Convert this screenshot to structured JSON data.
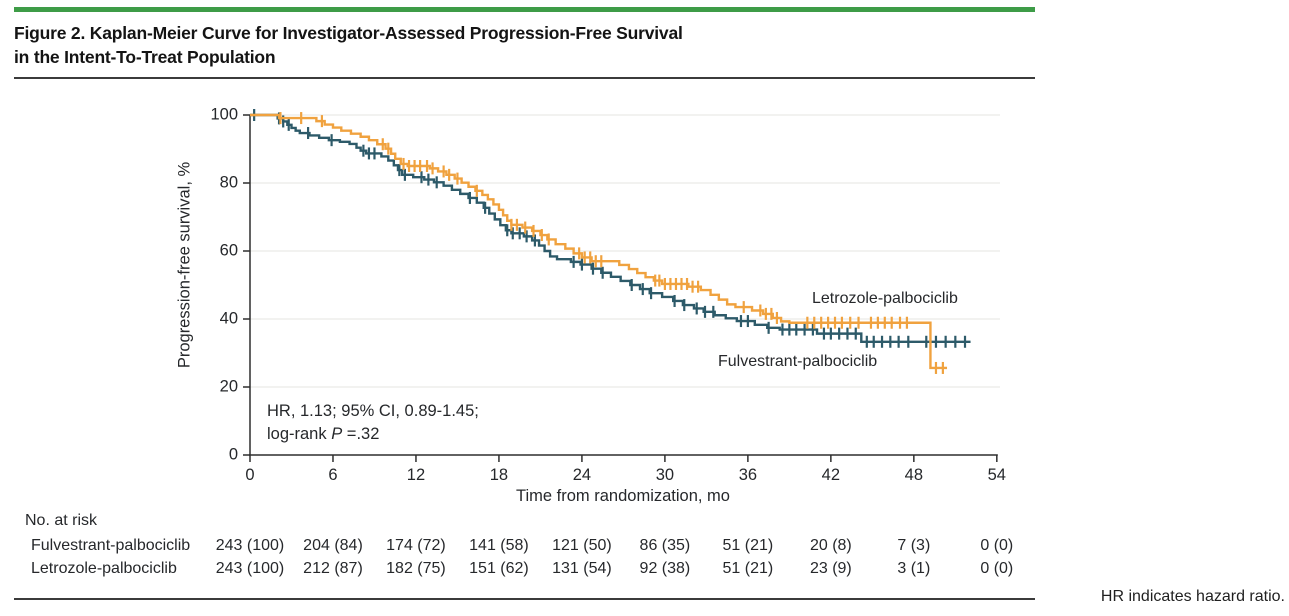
{
  "figure": {
    "accent_bar_color": "#3E9C47",
    "title_line1": "Figure 2. Kaplan-Meier Curve for Investigator-Assessed Progression-Free Survival",
    "title_line2": "in the Intent-To-Treat Population",
    "footnote": "HR indicates hazard ratio."
  },
  "chart_data": {
    "type": "line",
    "subtype": "kaplan-meier-step",
    "title": "",
    "xlabel": "Time from randomization, mo",
    "ylabel": "Progression-free survival, %",
    "xlim": [
      0,
      54
    ],
    "ylim": [
      0,
      100
    ],
    "x_ticks": [
      0,
      6,
      12,
      18,
      24,
      30,
      36,
      42,
      48,
      54
    ],
    "y_ticks": [
      0,
      20,
      40,
      60,
      80,
      100
    ],
    "grid": "horizontal-light",
    "gridline_color": "#E6E5E2",
    "axis_color": "#2e2e2e",
    "annotation": {
      "line1": "HR, 1.13; 95% CI, 0.89-1.45;",
      "line2_prefix": "log-rank ",
      "line2_italic": "P",
      "line2_suffix": " =.32"
    },
    "series": [
      {
        "name": "Fulvestrant-palbociclib",
        "color": "#2D5A69",
        "end_month": 52.1,
        "steps": [
          [
            0,
            100
          ],
          [
            2.0,
            99.0
          ],
          [
            2.4,
            98.1
          ],
          [
            2.7,
            97.1
          ],
          [
            3.0,
            96.2
          ],
          [
            3.3,
            95.4
          ],
          [
            3.6,
            94.7
          ],
          [
            4.3,
            94.0
          ],
          [
            5.0,
            93.3
          ],
          [
            5.7,
            92.6
          ],
          [
            6.5,
            92.1
          ],
          [
            7.2,
            91.5
          ],
          [
            7.7,
            90.4
          ],
          [
            8.0,
            89.5
          ],
          [
            8.4,
            88.7
          ],
          [
            9.5,
            87.8
          ],
          [
            10.0,
            86.6
          ],
          [
            10.4,
            85.2
          ],
          [
            10.7,
            83.8
          ],
          [
            11.0,
            82.4
          ],
          [
            11.8,
            81.7
          ],
          [
            12.6,
            81.0
          ],
          [
            13.3,
            80.2
          ],
          [
            14.0,
            79.2
          ],
          [
            14.6,
            78.0
          ],
          [
            15.2,
            76.8
          ],
          [
            15.8,
            75.6
          ],
          [
            16.4,
            74.2
          ],
          [
            16.9,
            72.7
          ],
          [
            17.3,
            71.0
          ],
          [
            17.7,
            69.3
          ],
          [
            18.1,
            67.6
          ],
          [
            18.5,
            66.1
          ],
          [
            18.9,
            65.2
          ],
          [
            19.8,
            64.3
          ],
          [
            20.4,
            63.1
          ],
          [
            20.9,
            61.6
          ],
          [
            21.3,
            60.0
          ],
          [
            21.7,
            58.4
          ],
          [
            22.2,
            57.6
          ],
          [
            23.2,
            56.8
          ],
          [
            23.9,
            56.0
          ],
          [
            24.7,
            54.8
          ],
          [
            25.4,
            53.6
          ],
          [
            26.1,
            52.4
          ],
          [
            26.8,
            51.2
          ],
          [
            27.5,
            50.0
          ],
          [
            28.2,
            48.8
          ],
          [
            28.9,
            47.6
          ],
          [
            29.8,
            46.5
          ],
          [
            30.6,
            45.3
          ],
          [
            31.3,
            44.1
          ],
          [
            32.1,
            43.1
          ],
          [
            32.8,
            42.1
          ],
          [
            33.6,
            41.1
          ],
          [
            34.4,
            40.2
          ],
          [
            35.2,
            39.4
          ],
          [
            36.5,
            38.3
          ],
          [
            37.4,
            37.4
          ],
          [
            38.3,
            36.9
          ],
          [
            41.0,
            35.7
          ],
          [
            44.2,
            33.3
          ]
        ],
        "censor_months": [
          0.3,
          2.1,
          2.4,
          2.8,
          4.2,
          5.9,
          8.2,
          8.6,
          9.0,
          10.8,
          11.2,
          12.4,
          12.9,
          13.5,
          15.9,
          17.0,
          18.6,
          19.0,
          19.5,
          20.0,
          20.6,
          23.4,
          24.0,
          24.8,
          25.5,
          27.6,
          28.4,
          29.0,
          30.7,
          31.4,
          32.3,
          32.9,
          33.5,
          35.5,
          36.0,
          37.5,
          38.5,
          39.0,
          39.5,
          40.1,
          40.7,
          41.5,
          42.0,
          42.6,
          43.2,
          43.8,
          44.6,
          45.1,
          45.7,
          46.3,
          46.9,
          47.6,
          48.9,
          49.6,
          50.3,
          51.0,
          51.7
        ]
      },
      {
        "name": "Letrozole-palbociclib",
        "color": "#F0A23F",
        "end_month": 50.4,
        "steps": [
          [
            0,
            100
          ],
          [
            2.1,
            99.1
          ],
          [
            4.8,
            98.2
          ],
          [
            5.4,
            97.2
          ],
          [
            6.0,
            96.3
          ],
          [
            6.6,
            95.4
          ],
          [
            7.3,
            94.5
          ],
          [
            8.0,
            93.6
          ],
          [
            8.6,
            92.6
          ],
          [
            9.2,
            91.4
          ],
          [
            9.8,
            90.1
          ],
          [
            10.2,
            88.6
          ],
          [
            10.5,
            87.1
          ],
          [
            10.9,
            85.6
          ],
          [
            11.4,
            85.0
          ],
          [
            13.0,
            84.3
          ],
          [
            13.6,
            83.4
          ],
          [
            14.2,
            82.4
          ],
          [
            14.8,
            81.3
          ],
          [
            15.3,
            80.1
          ],
          [
            15.8,
            78.9
          ],
          [
            16.3,
            77.7
          ],
          [
            16.8,
            76.5
          ],
          [
            17.2,
            75.2
          ],
          [
            17.6,
            73.7
          ],
          [
            18.0,
            72.1
          ],
          [
            18.3,
            70.5
          ],
          [
            18.6,
            68.9
          ],
          [
            18.9,
            67.7
          ],
          [
            19.7,
            66.9
          ],
          [
            20.4,
            65.9
          ],
          [
            21.0,
            64.7
          ],
          [
            21.5,
            63.4
          ],
          [
            22.1,
            62.0
          ],
          [
            22.8,
            60.7
          ],
          [
            23.4,
            59.3
          ],
          [
            24.0,
            58.1
          ],
          [
            24.7,
            57.0
          ],
          [
            26.7,
            55.9
          ],
          [
            27.4,
            54.7
          ],
          [
            28.0,
            53.5
          ],
          [
            28.6,
            52.3
          ],
          [
            29.2,
            51.3
          ],
          [
            29.8,
            50.3
          ],
          [
            31.7,
            49.5
          ],
          [
            32.6,
            48.5
          ],
          [
            33.3,
            47.1
          ],
          [
            33.9,
            45.7
          ],
          [
            34.5,
            44.3
          ],
          [
            35.1,
            43.5
          ],
          [
            36.3,
            42.5
          ],
          [
            37.1,
            41.5
          ],
          [
            37.8,
            40.3
          ],
          [
            38.4,
            39.3
          ],
          [
            39.0,
            38.9
          ],
          [
            49.2,
            25.6
          ]
        ],
        "censor_months": [
          2.2,
          3.7,
          5.2,
          9.6,
          10.0,
          11.1,
          11.5,
          11.9,
          12.3,
          12.8,
          13.2,
          14.0,
          14.4,
          15.0,
          16.4,
          18.9,
          19.3,
          19.9,
          20.5,
          21.1,
          21.6,
          23.8,
          24.2,
          24.6,
          25.0,
          25.4,
          29.3,
          29.6,
          30.0,
          30.4,
          30.8,
          31.2,
          31.6,
          32.0,
          32.4,
          35.7,
          36.9,
          37.3,
          37.7,
          38.1,
          40.3,
          40.8,
          41.3,
          41.8,
          42.3,
          42.8,
          43.4,
          44.0,
          44.9,
          45.4,
          45.9,
          46.4,
          47.0,
          47.5,
          49.6,
          50.1
        ]
      }
    ]
  },
  "at_risk": {
    "header": "No. at risk",
    "rows": [
      {
        "label": "Fulvestrant-palbociclib",
        "values": [
          "243 (100)",
          "204 (84)",
          "174 (72)",
          "141 (58)",
          "121 (50)",
          "86 (35)",
          "51 (21)",
          "20 (8)",
          "7 (3)",
          "0 (0)"
        ]
      },
      {
        "label": "Letrozole-palbociclib",
        "values": [
          "243 (100)",
          "212 (87)",
          "182 (75)",
          "151 (62)",
          "131 (54)",
          "92 (38)",
          "51 (21)",
          "23 (9)",
          "3 (1)",
          "0 (0)"
        ]
      }
    ]
  }
}
